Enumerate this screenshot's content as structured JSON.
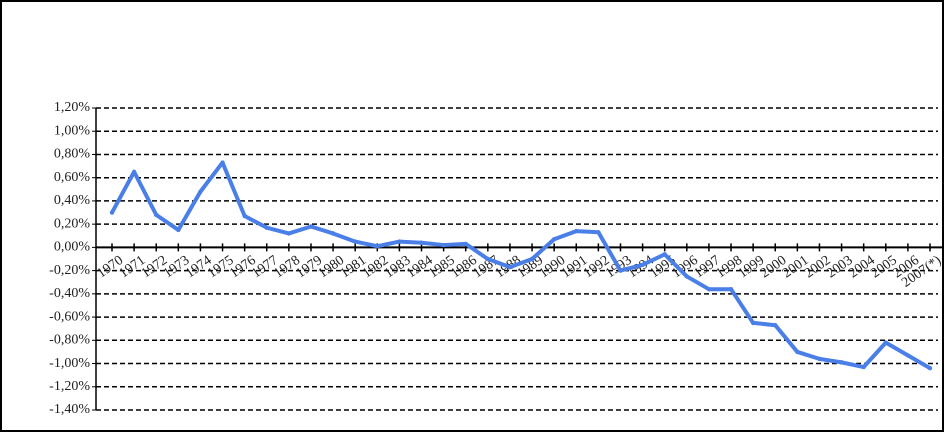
{
  "chart_data": {
    "type": "line",
    "categories": [
      "1970",
      "1971",
      "1972",
      "1973",
      "1974",
      "1975",
      "1976",
      "1977",
      "1978",
      "1979",
      "1980",
      "1981",
      "1982",
      "1983",
      "1984",
      "1985",
      "1986",
      "1987",
      "1988",
      "1989",
      "1990",
      "1991",
      "1992",
      "1993",
      "1994",
      "1995",
      "1996",
      "1997",
      "1998",
      "1999",
      "2000",
      "2001",
      "2002",
      "2003",
      "2004",
      "2005",
      "2006",
      "2007(*)"
    ],
    "series": [
      {
        "color": "#4a7fe8",
        "values": [
          0.3,
          0.65,
          0.28,
          0.15,
          0.48,
          0.73,
          0.27,
          0.17,
          0.12,
          0.18,
          0.12,
          0.05,
          0.01,
          0.05,
          0.04,
          0.02,
          0.03,
          -0.1,
          -0.17,
          -0.1,
          0.07,
          0.14,
          0.13,
          -0.2,
          -0.15,
          -0.06,
          -0.25,
          -0.36,
          -0.36,
          -0.65,
          -0.67,
          -0.9,
          -0.96,
          -0.99,
          -1.03,
          -0.82,
          -0.93,
          -1.04
        ]
      }
    ],
    "ylim": [
      -1.4,
      1.2
    ],
    "yticks": [
      {
        "value": 1.2,
        "label": "1,20%"
      },
      {
        "value": 1.0,
        "label": "1,00%"
      },
      {
        "value": 0.8,
        "label": "0,80%"
      },
      {
        "value": 0.6,
        "label": "0,60%"
      },
      {
        "value": 0.4,
        "label": "0,40%"
      },
      {
        "value": 0.2,
        "label": "0,20%"
      },
      {
        "value": 0,
        "label": "0,00%"
      },
      {
        "value": -0.2,
        "label": "-0,20%"
      },
      {
        "value": -0.4,
        "label": "-0,40%"
      },
      {
        "value": -0.6,
        "label": "-0,60%"
      },
      {
        "value": -0.8,
        "label": "-0,80%"
      },
      {
        "value": -1.0,
        "label": "-1,00%"
      },
      {
        "value": -1.2,
        "label": "-1,20%"
      },
      {
        "value": -1.4,
        "label": "-1,40%"
      }
    ],
    "grid": true
  }
}
